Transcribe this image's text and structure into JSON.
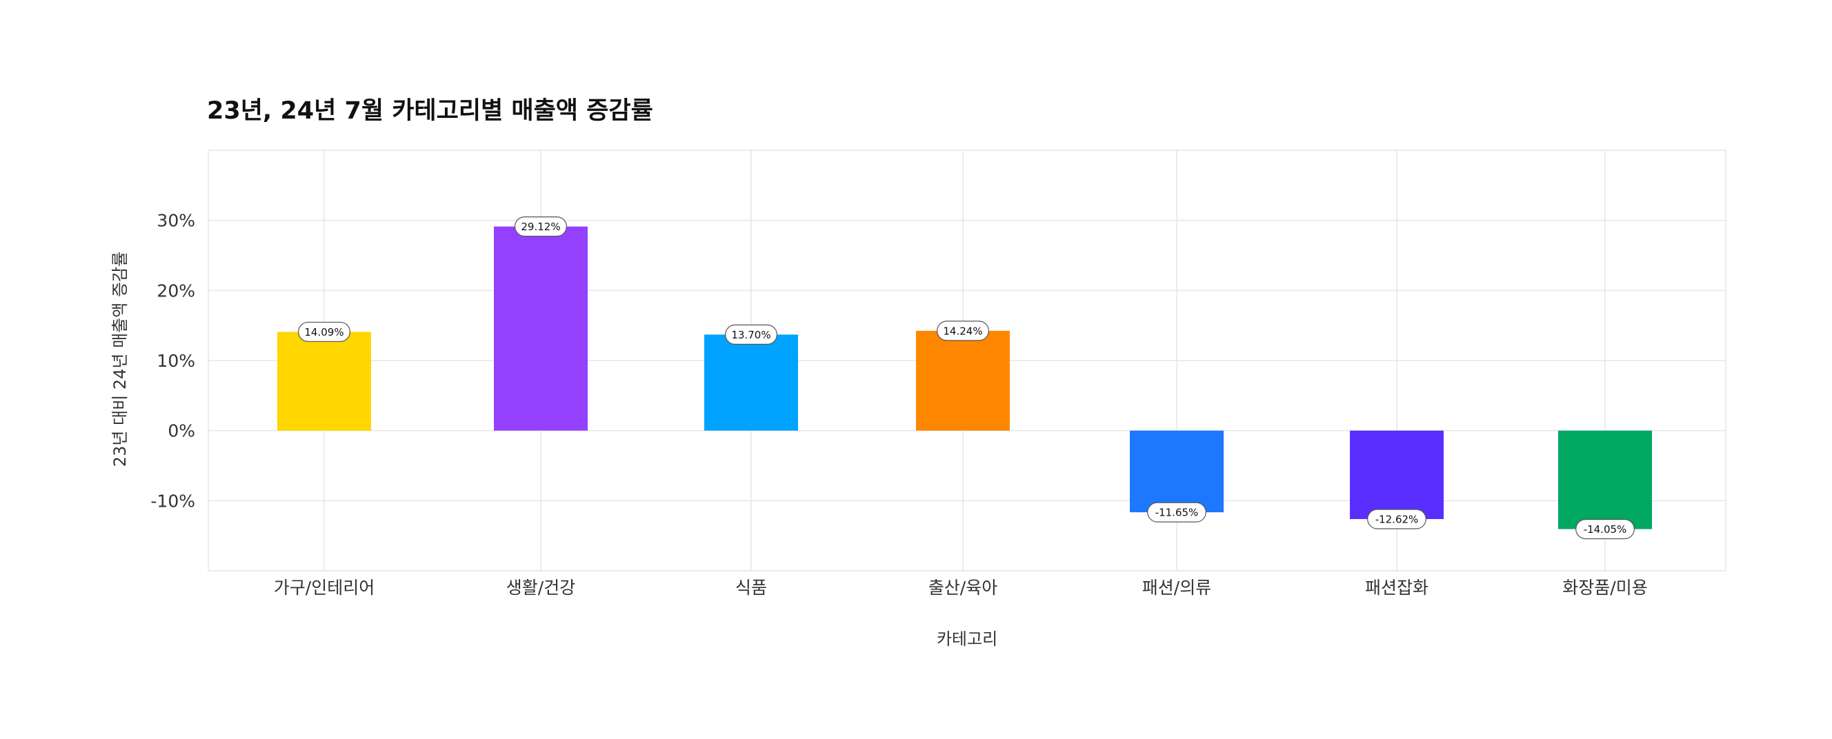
{
  "chart_data": {
    "type": "bar",
    "title": "23년, 24년 7월 카테고리별 매출액 증감률",
    "xlabel": "카테고리",
    "ylabel": "23년 대비 24년 매출액 증감률",
    "categories": [
      "가구/인테리어",
      "생활/건강",
      "식품",
      "출산/육아",
      "패션/의류",
      "패션잡화",
      "화장품/미용"
    ],
    "values": [
      14.09,
      29.12,
      13.7,
      14.24,
      -11.65,
      -12.62,
      -14.05
    ],
    "data_labels": [
      "14.09%",
      "29.12%",
      "13.70%",
      "14.24%",
      "-11.65%",
      "-12.62%",
      "-14.05%"
    ],
    "colors": [
      "#FFD600",
      "#9340FF",
      "#00A3FF",
      "#FF8700",
      "#1D77FF",
      "#5A2EFF",
      "#00A862"
    ],
    "yticks": [
      30,
      20,
      10,
      0,
      -10
    ],
    "ytick_labels": [
      "30%",
      "20%",
      "10%",
      "0%",
      "-10%"
    ],
    "ylim": [
      -20,
      40
    ],
    "grid": true,
    "legend": "none"
  }
}
